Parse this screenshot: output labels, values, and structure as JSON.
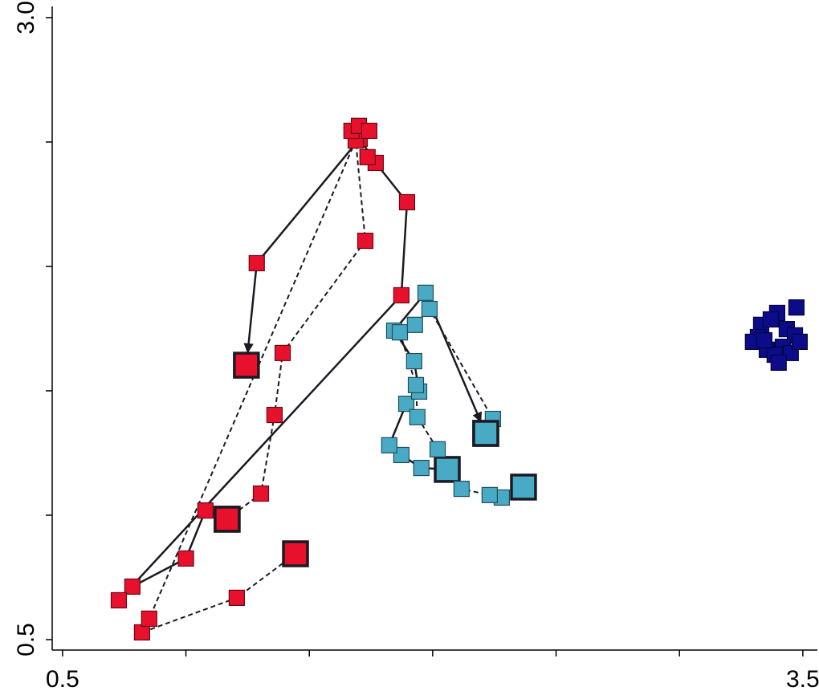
{
  "chart_data": {
    "type": "scatter",
    "xlim": [
      0.458,
      3.559
    ],
    "ylim": [
      0.458,
      3.045
    ],
    "xticks": [
      0.5,
      3.5
    ],
    "yticks": [
      0.5,
      {
        "value": 3,
        "label": "3.0"
      }
    ],
    "xminor_ticks": [
      1,
      1.5,
      2,
      2.5,
      3
    ],
    "yminor_ticks": [
      1,
      1.5,
      2,
      2.5
    ],
    "series": [
      {
        "color": "#e8112d",
        "line": "solid",
        "arrow": true,
        "large_endpoints": true,
        "x": [
          1.167,
          1.079,
          1.0,
          0.783,
          0.728,
          1.873,
          1.896,
          1.769,
          1.704,
          1.287,
          1.245
        ],
        "values": [
          0.984,
          1.019,
          0.826,
          0.713,
          0.658,
          1.884,
          2.258,
          2.416,
          2.513,
          2.013,
          1.603
        ]
      },
      {
        "color": "#e8112d",
        "line": "dashed",
        "arrow": false,
        "large_endpoints": true,
        "x": [
          1.444,
          1.206,
          0.822,
          0.851,
          1.688,
          1.727,
          1.392,
          1.359,
          1.304,
          1.167
        ],
        "values": [
          0.845,
          0.668,
          0.529,
          0.584,
          2.506,
          2.103,
          1.652,
          1.403,
          1.087,
          0.984
        ]
      },
      {
        "color": "#e8112d",
        "x": [
          1.671,
          1.701,
          1.743,
          1.736
        ],
        "values": [
          2.545,
          2.565,
          2.545,
          2.439
        ]
      },
      {
        "color": "#49aac6",
        "line": "solid",
        "arrow": true,
        "large_endpoints": true,
        "x": [
          2.059,
          1.954,
          1.873,
          1.824,
          1.893,
          1.945,
          1.925,
          1.844,
          1.971,
          2.215
        ],
        "values": [
          1.184,
          1.19,
          1.242,
          1.281,
          1.448,
          1.497,
          1.619,
          1.742,
          1.894,
          1.329
        ]
      },
      {
        "color": "#49aac6",
        "line": "dashed",
        "arrow": false,
        "large_endpoints": true,
        "x": [
          2.368,
          2.28,
          2.231,
          2.117,
          2.02,
          1.938,
          1.932,
          1.867,
          1.928,
          1.987,
          2.244,
          2.215
        ],
        "values": [
          1.113,
          1.071,
          1.081,
          1.106,
          1.265,
          1.394,
          1.523,
          1.735,
          1.765,
          1.829,
          1.387,
          1.329
        ]
      },
      {
        "color": "#0c0c8a",
        "x": [
          3.474,
          3.396,
          3.331,
          3.37,
          3.435,
          3.318,
          3.298,
          3.468,
          3.419,
          3.354,
          3.386,
          3.451,
          3.402,
          3.344,
          3.487
        ],
        "values": [
          1.835,
          1.813,
          1.765,
          1.787,
          1.748,
          1.716,
          1.697,
          1.723,
          1.677,
          1.665,
          1.645,
          1.652,
          1.613,
          1.703,
          1.697
        ]
      }
    ]
  }
}
